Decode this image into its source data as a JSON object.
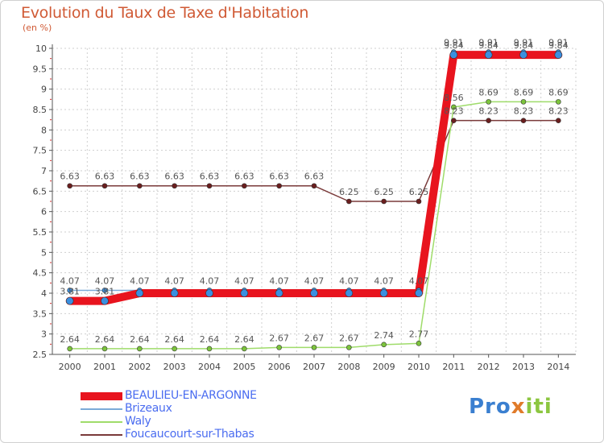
{
  "title": "Evolution du Taux de Taxe d'Habitation",
  "unit": "(en %)",
  "logo": {
    "p1": "Pro",
    "p2": "x",
    "p3": "iti"
  },
  "colors": {
    "title": "#d05a35",
    "axis": "#555555",
    "grid": "#cfcfcf",
    "legend_text": "#4a6cf0"
  },
  "chart_data": {
    "type": "line",
    "title": "Evolution du Taux de Taxe d'Habitation",
    "ylabel": "(en %)",
    "xlabel": "",
    "ylim": [
      2.5,
      10
    ],
    "yticks": [
      "2.5",
      "3",
      "3.5",
      "4",
      "4.5",
      "5",
      "5.5",
      "6",
      "6.5",
      "7",
      "7.5",
      "8",
      "8.5",
      "9",
      "9.5",
      "10"
    ],
    "x": [
      "2000",
      "2001",
      "2002",
      "2003",
      "2004",
      "2005",
      "2006",
      "2007",
      "2008",
      "2009",
      "2010",
      "2011",
      "2012",
      "2013",
      "2014"
    ],
    "legend_position": "bottom-left",
    "series": [
      {
        "name": "BEAULIEU-EN-ARGONNE",
        "color": "#e8141e",
        "marker": "#3a8fe0",
        "values": [
          3.81,
          3.81,
          4.0,
          4.0,
          4.0,
          4.0,
          4.0,
          4.0,
          4.0,
          4.0,
          4.0,
          9.84,
          9.84,
          9.84,
          9.84
        ],
        "labels": [
          "3.81",
          "3.81",
          "",
          "",
          "",
          "",
          "",
          "",
          "",
          "",
          "",
          "9.84",
          "9.84",
          "9.84",
          "9.84"
        ]
      },
      {
        "name": "Brizeaux",
        "color": "#7aaad8",
        "marker": "#3a8fe0",
        "values": [
          4.07,
          4.07,
          4.07,
          4.07,
          4.07,
          4.07,
          4.07,
          4.07,
          4.07,
          4.07,
          4.07,
          9.91,
          9.91,
          9.91,
          9.91
        ],
        "labels": [
          "4.07",
          "4.07",
          "4.07",
          "4.07",
          "4.07",
          "4.07",
          "4.07",
          "4.07",
          "4.07",
          "4.07",
          "4.07",
          "9.91",
          "9.91",
          "9.91",
          "9.91"
        ]
      },
      {
        "name": "Waly",
        "color": "#9fdc6a",
        "marker": "#7cc43c",
        "values": [
          2.64,
          2.64,
          2.64,
          2.64,
          2.64,
          2.64,
          2.67,
          2.67,
          2.67,
          2.74,
          2.77,
          8.56,
          8.69,
          8.69,
          8.69
        ],
        "labels": [
          "2.64",
          "2.64",
          "2.64",
          "2.64",
          "2.64",
          "2.64",
          "2.67",
          "2.67",
          "2.67",
          "2.74",
          "2.77",
          "8.56",
          "8.69",
          "8.69",
          "8.69"
        ]
      },
      {
        "name": "Foucaucourt-sur-Thabas",
        "color": "#7a3a3a",
        "marker": "#6b1e1e",
        "values": [
          6.63,
          6.63,
          6.63,
          6.63,
          6.63,
          6.63,
          6.63,
          6.63,
          6.25,
          6.25,
          6.25,
          8.23,
          8.23,
          8.23,
          8.23
        ],
        "labels": [
          "6.63",
          "6.63",
          "6.63",
          "6.63",
          "6.63",
          "6.63",
          "6.63",
          "6.63",
          "6.25",
          "6.25",
          "6.25",
          "8.23",
          "8.23",
          "8.23",
          "8.23"
        ]
      }
    ]
  }
}
